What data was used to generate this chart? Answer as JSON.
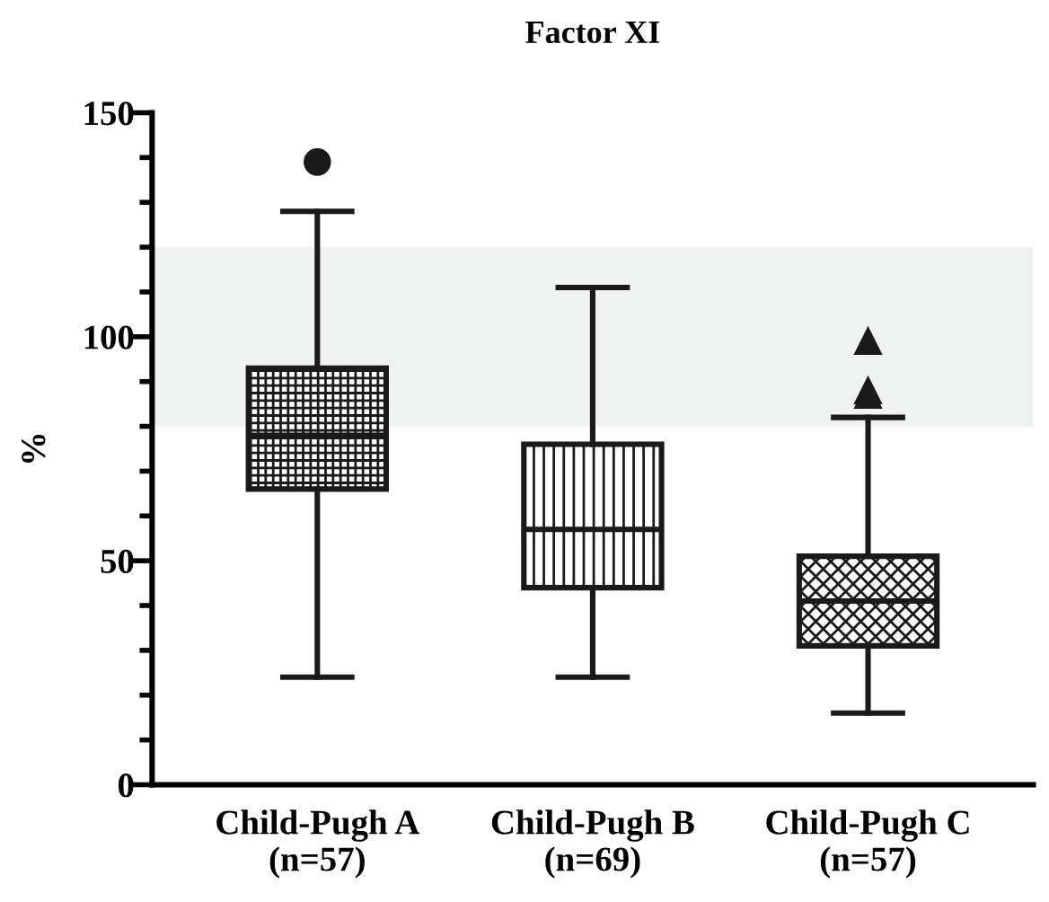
{
  "chart_data": {
    "type": "box",
    "title": "Factor XI",
    "ylabel": "%",
    "categories": [
      "Child-Pugh A\n(n=57)",
      "Child-Pugh B\n(n=69)",
      "Child-Pugh C\n(n=57)"
    ],
    "series": [
      {
        "color": "#1a1a1a",
        "marker": "circle",
        "boxes": [
          {
            "low": 24,
            "q1": 66,
            "median": 78,
            "q3": 93,
            "high": 128,
            "outliers": [
              139
            ]
          },
          null,
          null
        ]
      },
      {
        "color": "#1a1a1a",
        "marker": "none",
        "boxes": [
          null,
          {
            "low": 24,
            "q1": 44,
            "median": 57,
            "q3": 76,
            "high": 111
          },
          null
        ]
      },
      {
        "color": "#1a1a1a",
        "marker": "triangle",
        "boxes": [
          null,
          null,
          {
            "low": 16,
            "q1": 31,
            "median": 41,
            "q3": 51,
            "high": 82,
            "outliers": [
              99,
              87,
              88
            ]
          }
        ]
      }
    ],
    "bands": [
      {
        "axis": "y",
        "from": 80,
        "to": 120,
        "color": "#f0f2f1"
      }
    ],
    "ylim": [
      0,
      150
    ],
    "yticks": [
      0,
      {
        "value": 10,
        "label": null
      },
      {
        "value": 20,
        "label": null
      },
      {
        "value": 30,
        "label": null
      },
      {
        "value": 40,
        "label": null
      },
      50,
      {
        "value": 60,
        "label": null
      },
      {
        "value": 70,
        "label": null
      },
      {
        "value": 80,
        "label": null
      },
      {
        "value": 90,
        "label": null
      },
      100,
      {
        "value": 110,
        "label": null
      },
      {
        "value": 120,
        "label": null
      },
      {
        "value": 130,
        "label": null
      },
      {
        "value": 140,
        "label": null
      },
      150
    ],
    "grid": false,
    "legend": false
  }
}
